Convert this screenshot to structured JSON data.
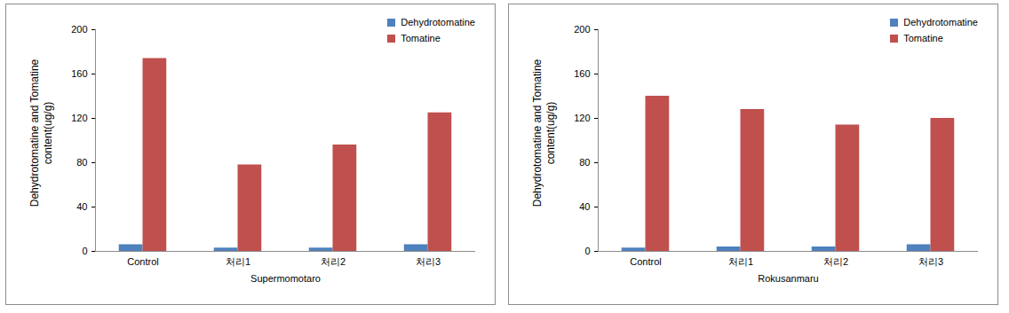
{
  "chart_data": [
    {
      "type": "bar",
      "xlabel": "Supermomotaro",
      "ylabel": "Dehydrotomatine and Tomatine content(ug/g)",
      "categories": [
        "Control",
        "처리1",
        "처리2",
        "처리3"
      ],
      "series": [
        {
          "name": "Dehydrotomatine",
          "color": "#4f81bd",
          "values": [
            6,
            3,
            3,
            6
          ]
        },
        {
          "name": "Tomatine",
          "color": "#c0504d",
          "values": [
            174,
            78,
            96,
            125
          ]
        }
      ],
      "ylim": [
        0,
        200
      ],
      "yticks": [
        0,
        40,
        80,
        120,
        160,
        200
      ],
      "grid": false,
      "legend": "top-right"
    },
    {
      "type": "bar",
      "xlabel": "Rokusanmaru",
      "ylabel": "Dehydrotomatine and Tomatine content(ug/g)",
      "categories": [
        "Control",
        "처리1",
        "처리2",
        "처리3"
      ],
      "series": [
        {
          "name": "Dehydrotomatine",
          "color": "#4f81bd",
          "values": [
            3,
            4,
            4,
            6
          ]
        },
        {
          "name": "Tomatine",
          "color": "#c0504d",
          "values": [
            140,
            128,
            114,
            120
          ]
        }
      ],
      "ylim": [
        0,
        200
      ],
      "yticks": [
        0,
        40,
        80,
        120,
        160,
        200
      ],
      "grid": false,
      "legend": "top-right"
    }
  ]
}
